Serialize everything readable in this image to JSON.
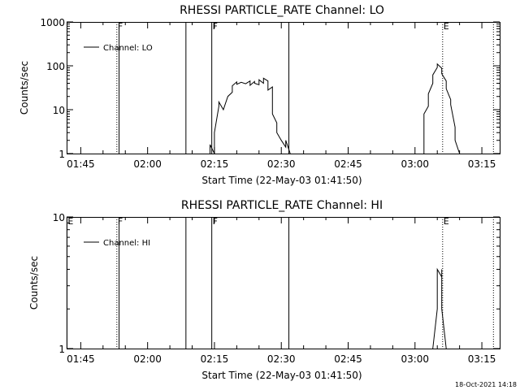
{
  "chart_data": [
    {
      "type": "line",
      "title": "RHESSI PARTICLE_RATE Channel: LO",
      "xlabel": "Start Time (22-May-03 01:41:50)",
      "ylabel": "Counts/sec",
      "yscale": "log",
      "ylim": [
        1,
        1000
      ],
      "xlim_minutes": [
        101.83,
        199.0
      ],
      "x_ticks": [
        "01:45",
        "02:00",
        "02:15",
        "02:30",
        "02:45",
        "03:00",
        "03:15"
      ],
      "y_ticks": [
        "1",
        "10",
        "100",
        "1000"
      ],
      "legend": "Channel: LO",
      "legend_position": "top-left",
      "markers": [
        {
          "label": "F",
          "minute": 113.1,
          "style": "dotted"
        },
        {
          "label": "",
          "minute": 113.6,
          "style": "solid"
        },
        {
          "label": "",
          "minute": 128.6,
          "style": "solid"
        },
        {
          "label": "F",
          "minute": 134.4,
          "style": "solid"
        },
        {
          "label": "",
          "minute": 151.7,
          "style": "solid"
        },
        {
          "label": "E",
          "minute": 186.2,
          "style": "dotted"
        },
        {
          "label": "",
          "minute": 197.6,
          "style": "dotted"
        }
      ],
      "series": [
        {
          "x": [
            "02:14",
            "02:14",
            "02:15",
            "02:15",
            "02:16",
            "02:16",
            "02:17",
            "02:18",
            "02:19",
            "02:19",
            "02:20",
            "02:20",
            "02:21",
            "02:22",
            "02:23",
            "02:23",
            "02:24",
            "02:24",
            "02:25",
            "02:25",
            "02:26",
            "02:26",
            "02:27",
            "02:27",
            "02:28",
            "02:28",
            "02:29",
            "02:29",
            "02:30",
            "02:31",
            "02:31",
            "02:32",
            "02:32"
          ],
          "y": [
            1,
            1.6,
            1,
            3,
            12,
            15,
            10,
            20,
            25,
            35,
            43,
            38,
            42,
            39,
            45,
            36,
            44,
            40,
            37,
            48,
            40,
            52,
            45,
            28,
            33,
            8,
            5,
            3,
            2,
            1.4,
            2,
            1,
            1
          ]
        },
        {
          "x": [
            "03:02",
            "03:02",
            "03:03",
            "03:03",
            "03:04",
            "03:04",
            "03:05",
            "03:05",
            "03:06",
            "03:06",
            "03:07",
            "03:07",
            "03:08",
            "03:08",
            "03:09",
            "03:09",
            "03:10"
          ],
          "y": [
            1,
            8,
            12,
            23,
            40,
            62,
            92,
            110,
            88,
            66,
            45,
            30,
            17,
            13,
            4,
            2,
            1
          ]
        }
      ]
    },
    {
      "type": "line",
      "title": "RHESSI PARTICLE_RATE Channel: HI",
      "xlabel": "Start Time (22-May-03 01:41:50)",
      "ylabel": "Counts/sec",
      "yscale": "log",
      "ylim": [
        1,
        10
      ],
      "xlim_minutes": [
        101.83,
        199.0
      ],
      "x_ticks": [
        "01:45",
        "02:00",
        "02:15",
        "02:30",
        "02:45",
        "03:00",
        "03:15"
      ],
      "y_ticks": [
        "1",
        "10"
      ],
      "legend": "Channel: HI",
      "legend_position": "top-left",
      "markers": [
        {
          "label": "E",
          "minute": 101.9,
          "style": "solid"
        },
        {
          "label": "F",
          "minute": 113.1,
          "style": "dotted"
        },
        {
          "label": "",
          "minute": 113.6,
          "style": "solid"
        },
        {
          "label": "",
          "minute": 128.6,
          "style": "solid"
        },
        {
          "label": "F",
          "minute": 134.4,
          "style": "solid"
        },
        {
          "label": "",
          "minute": 151.7,
          "style": "solid"
        },
        {
          "label": "E",
          "minute": 186.2,
          "style": "dotted"
        },
        {
          "label": "",
          "minute": 197.6,
          "style": "dotted"
        }
      ],
      "series": [
        {
          "x": [
            "03:04",
            "03:05",
            "03:05",
            "03:05",
            "03:06",
            "03:06",
            "03:06",
            "03:07"
          ],
          "y": [
            1,
            2,
            3.5,
            4,
            3.5,
            4,
            2,
            1
          ]
        }
      ]
    }
  ],
  "footer": {
    "stamp": "18-Oct-2021 14:18"
  }
}
